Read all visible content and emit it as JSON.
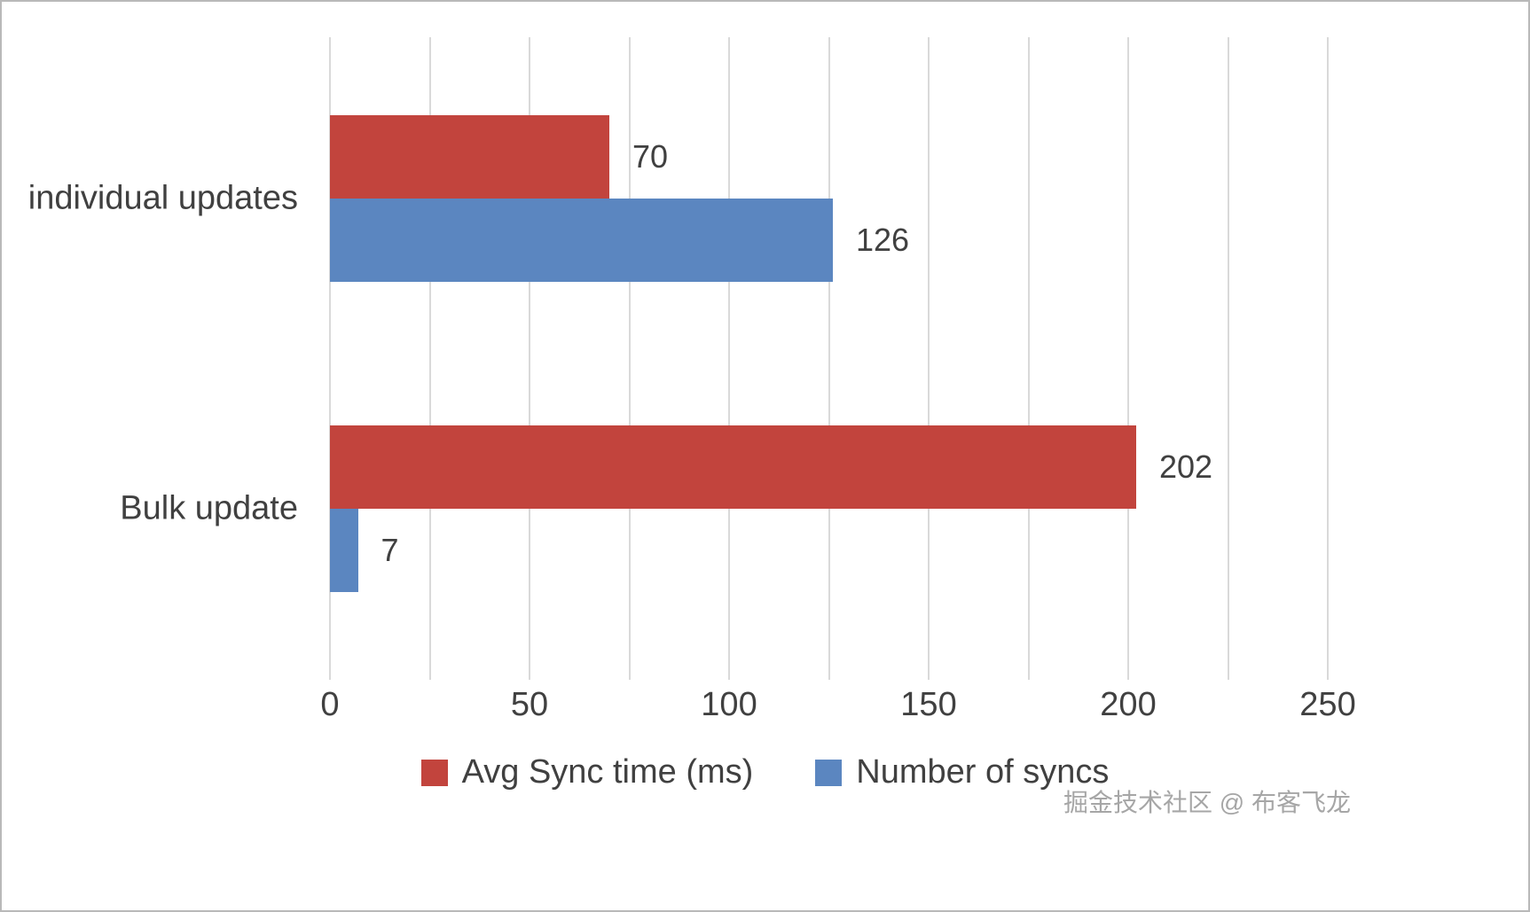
{
  "chart_data": {
    "type": "bar",
    "orientation": "horizontal",
    "title": "",
    "xlabel": "",
    "ylabel": "",
    "categories": [
      "individual updates",
      "Bulk update"
    ],
    "series": [
      {
        "name": "Avg Sync time (ms)",
        "color": "#c2443d",
        "values": [
          70,
          202
        ]
      },
      {
        "name": "Number of syncs",
        "color": "#5b86c0",
        "values": [
          126,
          7
        ]
      }
    ],
    "xlim": [
      0,
      250
    ],
    "x_ticks": [
      0,
      50,
      100,
      150,
      200,
      250
    ],
    "gridline_step": 25,
    "grid": true,
    "data_labels": [
      {
        "category": "individual updates",
        "Avg Sync time (ms)": 70,
        "Number of syncs": 126
      },
      {
        "category": "Bulk update",
        "Avg Sync time (ms)": 202,
        "Number of syncs": 7
      }
    ],
    "legend_position": "bottom"
  },
  "colors": {
    "grid": "#d9d9d9",
    "text": "#404040",
    "watermark": "#a6a6a6",
    "background": "#ffffff"
  },
  "watermark": {
    "text": "掘金技术社区 @ 布客飞龙"
  }
}
